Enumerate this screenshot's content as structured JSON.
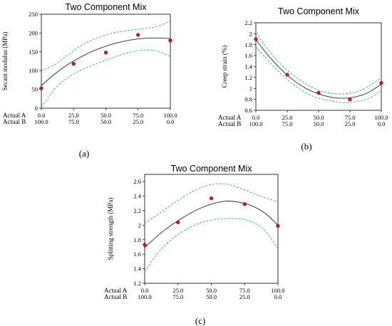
{
  "chart_data": [
    {
      "type": "line",
      "title": "Two Component Mix",
      "ylabel": "Secant modulus (MPa)",
      "panel_label": "(a)",
      "x_row_labels": [
        "Actual A",
        "Actual B"
      ],
      "x_ticks_a": [
        "0.0",
        "25.0",
        "50.0",
        "75.0",
        "100.0"
      ],
      "x_ticks_b": [
        "100.0",
        "75.0",
        "50.0",
        "25.0",
        "0.0"
      ],
      "y_ticks": [
        "0",
        "50",
        "100",
        "150",
        "200",
        "250"
      ],
      "xlim": [
        0,
        100
      ],
      "ylim": [
        0,
        250
      ],
      "points": {
        "x": [
          0,
          25,
          50,
          75,
          100
        ],
        "y": [
          53,
          118,
          148,
          195,
          180
        ]
      },
      "fit": {
        "x": [
          0,
          10,
          20,
          30,
          40,
          50,
          60,
          70,
          80,
          90,
          100
        ],
        "y": [
          60,
          90,
          115,
          135,
          152,
          165,
          175,
          182,
          186,
          187,
          185
        ]
      },
      "ci_upper": {
        "x": [
          0,
          10,
          20,
          30,
          40,
          50,
          60,
          70,
          80,
          90,
          100
        ],
        "y": [
          100,
          115,
          140,
          165,
          182,
          195,
          203,
          208,
          212,
          218,
          232
        ]
      },
      "ci_lower": {
        "x": [
          0,
          10,
          20,
          30,
          40,
          50,
          60,
          70,
          80,
          90,
          100
        ],
        "y": [
          3,
          50,
          80,
          100,
          115,
          128,
          140,
          150,
          155,
          152,
          137
        ]
      }
    },
    {
      "type": "line",
      "title": "Two Component Mix",
      "ylabel": "Creep strain (%)",
      "panel_label": "(b)",
      "x_row_labels": [
        "Actual A",
        "Actual B"
      ],
      "x_ticks_a": [
        "0.0",
        "25.0",
        "50.0",
        "75.0",
        "100.0"
      ],
      "x_ticks_b": [
        "100.0",
        "75.0",
        "50.0",
        "25.0",
        "0.0"
      ],
      "y_ticks": [
        "0.6",
        "0.8",
        "1",
        "1.2",
        "1.4",
        "1.6",
        "1.8",
        "2",
        "2.2"
      ],
      "xlim": [
        0,
        100
      ],
      "ylim": [
        0.6,
        2.2
      ],
      "points": {
        "x": [
          0,
          25,
          50,
          75,
          100
        ],
        "y": [
          1.9,
          1.25,
          0.92,
          0.8,
          1.1
        ]
      },
      "fit": {
        "x": [
          0,
          10,
          20,
          30,
          40,
          50,
          60,
          70,
          80,
          90,
          100
        ],
        "y": [
          1.89,
          1.6,
          1.35,
          1.15,
          1.0,
          0.9,
          0.84,
          0.82,
          0.85,
          0.93,
          1.08
        ]
      },
      "ci_upper": {
        "x": [
          0,
          10,
          20,
          30,
          40,
          50,
          60,
          70,
          80,
          90,
          100
        ],
        "y": [
          2.02,
          1.7,
          1.44,
          1.24,
          1.08,
          0.97,
          0.91,
          0.9,
          0.94,
          1.04,
          1.2
        ]
      },
      "ci_lower": {
        "x": [
          0,
          10,
          20,
          30,
          40,
          50,
          60,
          70,
          80,
          90,
          100
        ],
        "y": [
          1.76,
          1.5,
          1.27,
          1.07,
          0.92,
          0.82,
          0.77,
          0.74,
          0.76,
          0.82,
          0.96
        ]
      }
    },
    {
      "type": "line",
      "title": "Two Component Mix",
      "ylabel": "Splitting strength (MPa)",
      "panel_label": "(c)",
      "x_row_labels": [
        "Actual A",
        "Actual B"
      ],
      "x_ticks_a": [
        "0.0",
        "25.0",
        "50.0",
        "75.0",
        "100.0"
      ],
      "x_ticks_b": [
        "100.0",
        "75.0",
        "50.0",
        "25.0",
        "0.0"
      ],
      "y_ticks": [
        "1.2",
        "1.4",
        "1.6",
        "1.8",
        "2",
        "2.2",
        "2.4",
        "2.6"
      ],
      "xlim": [
        0,
        100
      ],
      "ylim": [
        1.2,
        2.7
      ],
      "points": {
        "x": [
          0,
          25,
          50,
          75,
          100
        ],
        "y": [
          1.73,
          2.04,
          2.37,
          2.29,
          1.99
        ]
      },
      "fit": {
        "x": [
          0,
          10,
          20,
          30,
          40,
          50,
          60,
          70,
          80,
          90,
          100
        ],
        "y": [
          1.69,
          1.86,
          2.0,
          2.12,
          2.22,
          2.29,
          2.33,
          2.32,
          2.27,
          2.17,
          2.0
        ]
      },
      "ci_upper": {
        "x": [
          0,
          10,
          20,
          30,
          40,
          50,
          60,
          70,
          80,
          90,
          100
        ],
        "y": [
          2.03,
          2.15,
          2.28,
          2.4,
          2.5,
          2.56,
          2.57,
          2.52,
          2.45,
          2.38,
          2.32
        ]
      },
      "ci_lower": {
        "x": [
          0,
          10,
          20,
          30,
          40,
          50,
          60,
          70,
          80,
          90,
          100
        ],
        "y": [
          1.36,
          1.62,
          1.8,
          1.93,
          2.02,
          2.07,
          2.09,
          2.09,
          2.05,
          1.93,
          1.68
        ]
      }
    }
  ]
}
